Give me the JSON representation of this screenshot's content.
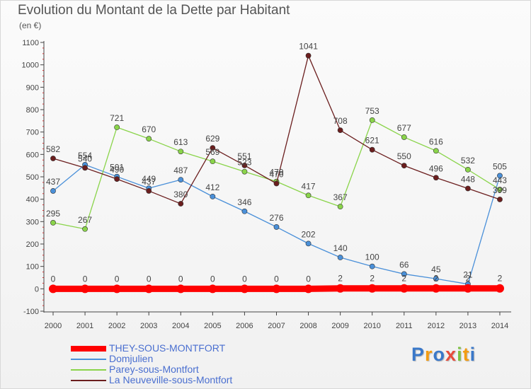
{
  "title": "Evolution du Montant de la Dette par Habitant",
  "unit": "(en €)",
  "logo": {
    "letters": [
      {
        "ch": "P",
        "color": "#3a78c9"
      },
      {
        "ch": "r",
        "color": "#f39c12"
      },
      {
        "ch": "o",
        "color": "#3a78c9"
      },
      {
        "ch": "x",
        "color": "#e74c3c"
      },
      {
        "ch": "i",
        "color": "#7dc242"
      },
      {
        "ch": "t",
        "color": "#f39c12"
      },
      {
        "ch": "i",
        "color": "#3a78c9"
      }
    ]
  },
  "chart_data": {
    "type": "line",
    "title": "Evolution du Montant de la Dette par Habitant",
    "ylabel": "(en €)",
    "x": [
      "2000",
      "2001",
      "2002",
      "2003",
      "2004",
      "2005",
      "2006",
      "2007",
      "2008",
      "2009",
      "2010",
      "2011",
      "2012",
      "2013",
      "2014"
    ],
    "ylim": [
      -100,
      1100
    ],
    "yticks": [
      -100,
      0,
      100,
      200,
      300,
      400,
      500,
      600,
      700,
      800,
      900,
      1000,
      1100
    ],
    "grid": false,
    "legend_position": "bottom-left",
    "series": [
      {
        "name": "THEY-SOUS-MONTFORT",
        "color": "#ff0000",
        "values": [
          0,
          0,
          0,
          0,
          0,
          0,
          0,
          0,
          0,
          2,
          2,
          2,
          2,
          2,
          2
        ],
        "labels": [
          "0",
          "0",
          "0",
          "0",
          "0",
          "0",
          "0",
          "0",
          "0",
          "2",
          "2",
          "2",
          "2",
          "2",
          "2"
        ]
      },
      {
        "name": "Domjulien",
        "color": "#4a90d9",
        "values": [
          437,
          554,
          501,
          449,
          487,
          412,
          346,
          276,
          202,
          140,
          100,
          66,
          45,
          21,
          505
        ],
        "labels": [
          "437",
          "554",
          "501",
          "449",
          "487",
          "412",
          "346",
          "276",
          "202",
          "140",
          "100",
          "66",
          "45",
          "21",
          "505"
        ]
      },
      {
        "name": "Parey-sous-Montfort",
        "color": "#8ad44a",
        "values": [
          295,
          267,
          721,
          670,
          613,
          569,
          523,
          479,
          417,
          367,
          753,
          677,
          616,
          532,
          443
        ],
        "labels": [
          "295",
          "267",
          "721",
          "670",
          "613",
          "569",
          "523",
          "479",
          "417",
          "367",
          "753",
          "677",
          "616",
          "532",
          "443"
        ]
      },
      {
        "name": "La Neuveville-sous-Montfort",
        "color": "#6b1e1e",
        "values": [
          582,
          540,
          490,
          437,
          380,
          629,
          551,
          470,
          1041,
          708,
          621,
          550,
          496,
          448,
          399
        ],
        "labels": [
          "582",
          "540",
          "490",
          "437",
          "380",
          "629",
          "551",
          "470",
          "1041",
          "708",
          "621",
          "550",
          "496",
          "448",
          "399"
        ]
      }
    ]
  }
}
